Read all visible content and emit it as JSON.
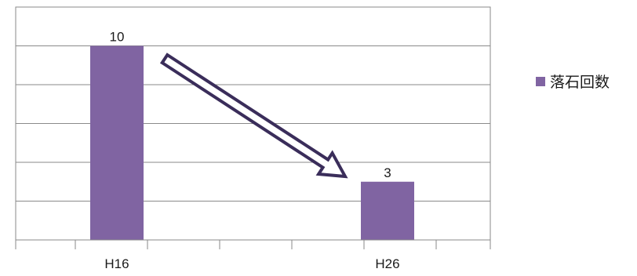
{
  "chart_data": {
    "type": "bar",
    "categories": [
      "H16",
      "H26"
    ],
    "series": [
      {
        "name": "落石回数",
        "values": [
          10,
          3
        ],
        "color": "#8064A2"
      }
    ],
    "ylim": [
      0,
      12
    ],
    "grid": true,
    "data_labels": true,
    "legend_position": "right",
    "annotation": "hollow arrow pointing from the H16 bar down to the H26 bar"
  },
  "legend": {
    "label": "落石回数",
    "color": "#8064A2"
  }
}
